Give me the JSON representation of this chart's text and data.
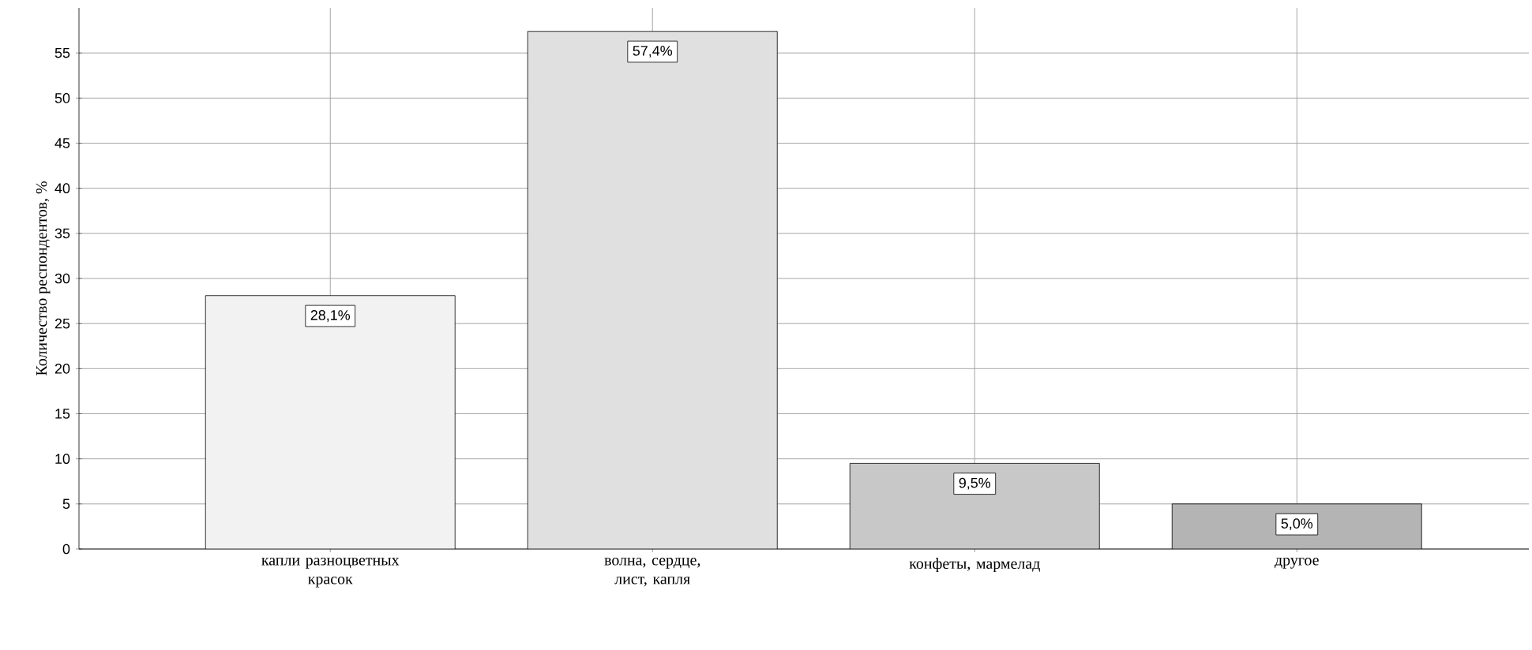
{
  "chart_data": {
    "type": "bar",
    "ylabel": "Количество респондентов, %",
    "categories": [
      "капли разноцветных красок",
      "волна, сердце, лист, капля",
      "конфеты, мармелад",
      "другое"
    ],
    "values": [
      28.1,
      57.4,
      9.5,
      5.0
    ],
    "value_labels": [
      "28,1%",
      "57,4%",
      "9,5%",
      "5,0%"
    ],
    "colors": [
      "#f2f2f2",
      "#e0e0e0",
      "#c8c8c8",
      "#b4b4b4"
    ],
    "ylim": [
      0,
      60
    ],
    "yticks": [
      0,
      5,
      10,
      15,
      20,
      25,
      30,
      35,
      40,
      45,
      50,
      55
    ],
    "grid": true
  }
}
